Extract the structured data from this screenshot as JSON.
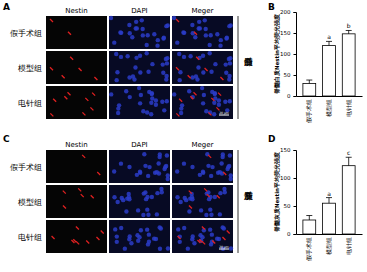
{
  "chart_data": [
    {
      "type": "bar",
      "y_label": "脊髓白质Nestin平均荧光强度",
      "categories": [
        "假手术组",
        "模型组",
        "电针组"
      ],
      "values": [
        30,
        120,
        148
      ],
      "errors": [
        8,
        10,
        8
      ],
      "annotations": [
        null,
        "a",
        "b"
      ],
      "color": "#ffffff",
      "ylim": [
        0,
        200
      ],
      "yticks": [
        0,
        50,
        100,
        150,
        200
      ],
      "grid": false
    },
    {
      "type": "bar",
      "y_label": "脊髓灰质Nestin平均荧光强度",
      "categories": [
        "假手术组",
        "模型组",
        "电针组"
      ],
      "values": [
        25,
        55,
        122
      ],
      "errors": [
        8,
        10,
        15
      ],
      "annotations": [
        null,
        "a",
        "c"
      ],
      "color": "#ffffff",
      "ylim": [
        0,
        150
      ],
      "yticks": [
        0,
        50,
        100,
        150
      ],
      "grid": false
    }
  ],
  "figure": {
    "panel_labels": [
      "A",
      "B",
      "C",
      "D"
    ],
    "image_panels": [
      {
        "columns": [
          "Nestin",
          "DAPI",
          "Meger"
        ],
        "rows": [
          "假手术组",
          "模型组",
          "电针组"
        ],
        "side_label": "脊髓白质",
        "scale_bar": "20 μm"
      },
      {
        "columns": [
          "Nestin",
          "DAPI",
          "Meger"
        ],
        "rows": [
          "假手术组",
          "模型组",
          "电针组"
        ],
        "side_label": "脊髓灰质",
        "scale_bar": "20 μm"
      }
    ]
  }
}
